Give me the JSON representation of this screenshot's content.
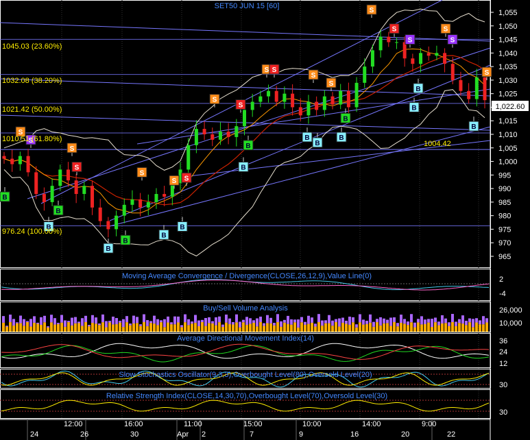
{
  "header": {
    "symbol_title": "SET50 JUN 15   [60]"
  },
  "colors": {
    "background": "#000000",
    "up_candle": "#22dd22",
    "down_candle": "#ee2222",
    "bollinger": "#e8e0d0",
    "ma_red": "#cc2200",
    "ma_orange": "#ff9900",
    "channel": "#7777ff",
    "fib_text": "#ffee00",
    "buy_marker": "#88eeff",
    "buy_green": "#22dd22",
    "sell_orange": "#ff8c1a",
    "sell_red": "#ee2222",
    "sell_purple": "#9933ff",
    "label_text": "#4488ff",
    "volume_orange": "#ffaa00",
    "volume_purple": "#aa66ff"
  },
  "main_chart": {
    "y_ticks": [
      "1,055",
      "1,050",
      "1,045",
      "1,040",
      "1,035",
      "1,030",
      "1,025",
      "1,020",
      "1,015",
      "1,010",
      "1,005",
      "1,000",
      "995",
      "990",
      "985",
      "980",
      "975",
      "970",
      "965"
    ],
    "current_price_label": "1,022.60",
    "fib_levels": [
      {
        "label": "1045.03 (23.60%)",
        "price": 1045.03
      },
      {
        "label": "1032.08 (38.20%)",
        "price": 1032.08
      },
      {
        "label": "1021.42 (50.00%)",
        "price": 1021.42
      },
      {
        "label": "1010.51 (61.80%)",
        "price": 1010.51
      },
      {
        "label": "976.24 (100.00%)",
        "price": 976.24
      }
    ],
    "annotation": {
      "text": "1004.42",
      "price": 1004.42
    }
  },
  "chart_data": {
    "type": "line",
    "title": "SET50 JUN 15   [60]",
    "y_range": [
      962,
      1058
    ],
    "close_approx": [
      1001,
      999,
      1002,
      996,
      988,
      985,
      991,
      997,
      993,
      988,
      991,
      983,
      978,
      975,
      980,
      984,
      986,
      983,
      985,
      988,
      987,
      992,
      997,
      1006,
      1012,
      1010,
      1008,
      1011,
      1009,
      1013,
      1019,
      1022,
      1024,
      1026,
      1022,
      1025,
      1020,
      1017,
      1022,
      1019,
      1024,
      1021,
      1026,
      1020,
      1029,
      1035,
      1041,
      1046,
      1044,
      1044,
      1038,
      1036,
      1040,
      1039,
      1040,
      1036,
      1030,
      1026,
      1023,
      1031,
      1022.6
    ],
    "last_close": 1022.6,
    "markers": [
      {
        "kind": "S",
        "color": "sell_orange",
        "x": 542,
        "price": 1056
      },
      {
        "kind": "S",
        "color": "sell_red",
        "x": 575,
        "price": 1049
      },
      {
        "kind": "S",
        "color": "sell_orange",
        "x": 650,
        "price": 1049
      },
      {
        "kind": "S",
        "color": "sell_purple",
        "x": 598,
        "price": 1045
      },
      {
        "kind": "S",
        "color": "sell_purple",
        "x": 660,
        "price": 1045
      },
      {
        "kind": "S",
        "color": "sell_orange",
        "x": 389,
        "price": 1034
      },
      {
        "kind": "S",
        "color": "sell_red",
        "x": 400,
        "price": 1034
      },
      {
        "kind": "S",
        "color": "sell_orange",
        "x": 457,
        "price": 1032
      },
      {
        "kind": "S",
        "color": "sell_orange",
        "x": 483,
        "price": 1029
      },
      {
        "kind": "S",
        "color": "sell_orange",
        "x": 710,
        "price": 1033
      },
      {
        "kind": "S",
        "color": "sell_orange",
        "x": 313,
        "price": 1023
      },
      {
        "kind": "S",
        "color": "sell_red",
        "x": 351,
        "price": 1021
      },
      {
        "kind": "S",
        "color": "sell_orange",
        "x": 30,
        "price": 1011
      },
      {
        "kind": "S",
        "color": "sell_purple",
        "x": 45,
        "price": 1008
      },
      {
        "kind": "S",
        "color": "sell_orange",
        "x": 105,
        "price": 1005
      },
      {
        "kind": "S",
        "color": "sell_red",
        "x": 112,
        "price": 998
      },
      {
        "kind": "S",
        "color": "sell_orange",
        "x": 207,
        "price": 996
      },
      {
        "kind": "S",
        "color": "sell_orange",
        "x": 254,
        "price": 993
      },
      {
        "kind": "S",
        "color": "sell_red",
        "x": 272,
        "price": 994
      },
      {
        "kind": "B",
        "color": "buy_marker",
        "x": 610,
        "price": 1027
      },
      {
        "kind": "B",
        "color": "buy_marker",
        "x": 604,
        "price": 1020
      },
      {
        "kind": "B",
        "color": "buy_marker",
        "x": 691,
        "price": 1013
      },
      {
        "kind": "B",
        "color": "buy_green",
        "x": 504,
        "price": 1016
      },
      {
        "kind": "B",
        "color": "buy_marker",
        "x": 448,
        "price": 1009
      },
      {
        "kind": "B",
        "color": "buy_marker",
        "x": 463,
        "price": 1007
      },
      {
        "kind": "B",
        "color": "buy_marker",
        "x": 498,
        "price": 1009
      },
      {
        "kind": "B",
        "color": "buy_green",
        "x": 362,
        "price": 1006
      },
      {
        "kind": "B",
        "color": "buy_marker",
        "x": 355,
        "price": 998
      },
      {
        "kind": "B",
        "color": "buy_green",
        "x": 7,
        "price": 987
      },
      {
        "kind": "B",
        "color": "buy_green",
        "x": 85,
        "price": 982
      },
      {
        "kind": "B",
        "color": "buy_marker",
        "x": 71,
        "price": 976
      },
      {
        "kind": "B",
        "color": "buy_marker",
        "x": 266,
        "price": 976
      },
      {
        "kind": "B",
        "color": "buy_marker",
        "x": 239,
        "price": 973
      },
      {
        "kind": "B",
        "color": "buy_green",
        "x": 183,
        "price": 971
      },
      {
        "kind": "B",
        "color": "buy_marker",
        "x": 158,
        "price": 968
      }
    ]
  },
  "indicators": {
    "macd": {
      "title": "Moving Average Convergence / Divergence(CLOSE,26,12,9),Value Line(0)",
      "ticks": [
        "2",
        "-4"
      ]
    },
    "volume": {
      "title": "Buy/Sell Volume Analysis",
      "ticks": [
        "26,000",
        "10,000"
      ]
    },
    "adx": {
      "title": "Average Directional Movement Index(14)",
      "ticks": [
        "36",
        "24",
        "12"
      ]
    },
    "stochastic": {
      "title": "Slow Stochastics Oscillator(9,3,3),Overbought Level(80),Oversold Level(20)",
      "ticks": [
        "30"
      ]
    },
    "rsi": {
      "title": "Relative Strength Index(CLOSE,14,30,70),Overbought Level(70),Oversold Level(30)",
      "ticks": [
        "30"
      ]
    }
  },
  "x_axis": {
    "time_labels": [
      "12:00",
      "16:00",
      "11:00",
      "15:00",
      "10:00",
      "14:00",
      "9:00"
    ],
    "date_labels": [
      "24",
      "26",
      "30",
      "Apr",
      "2",
      "7",
      "9",
      "16",
      "20",
      "22"
    ]
  }
}
